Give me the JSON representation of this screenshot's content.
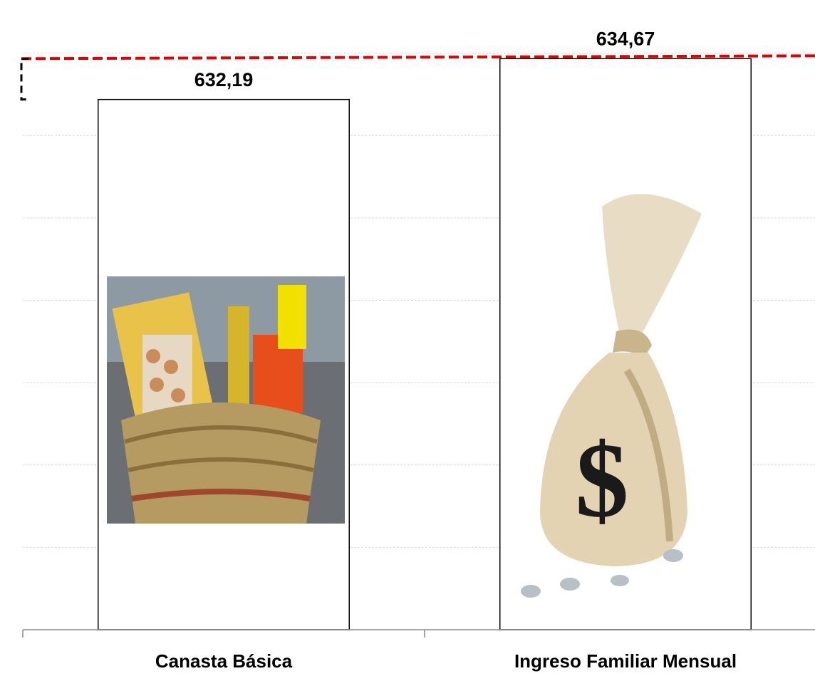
{
  "chart_data": {
    "type": "bar",
    "categories": [
      "Canasta Básica",
      "Ingreso Familiar Mensual"
    ],
    "values": [
      632.19,
      634.67
    ],
    "value_labels": [
      "632,19",
      "634,67"
    ],
    "color": "#ffffff",
    "edgecolor": "#000000",
    "ylim": [
      600,
      636.5
    ],
    "yticks": [
      600,
      605,
      610,
      615,
      620,
      625,
      630,
      635
    ],
    "grid": true
  }
}
